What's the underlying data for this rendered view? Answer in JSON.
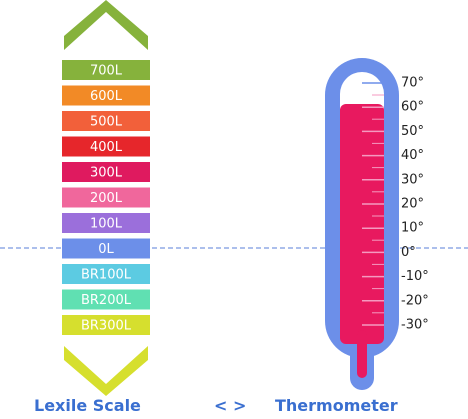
{
  "lexile_scale": {
    "levels": [
      {
        "label": "700L",
        "color": "#86b23c"
      },
      {
        "label": "600L",
        "color": "#f28a26"
      },
      {
        "label": "500L",
        "color": "#f2603a"
      },
      {
        "label": "400L",
        "color": "#e6262b"
      },
      {
        "label": "300L",
        "color": "#df1a5f"
      },
      {
        "label": "200L",
        "color": "#f0679c"
      },
      {
        "label": "100L",
        "color": "#9b6fdb"
      },
      {
        "label": "0L",
        "color": "#6c8fe9"
      },
      {
        "label": "BR100L",
        "color": "#5ccbe2"
      },
      {
        "label": "BR200L",
        "color": "#60e0b2"
      },
      {
        "label": "BR300L",
        "color": "#d6df2e"
      }
    ]
  },
  "thermometer": {
    "labels": [
      "70°",
      "60°",
      "50°",
      "40°",
      "30°",
      "20°",
      "10°",
      "0°",
      "-10°",
      "-20°",
      "-30°"
    ]
  },
  "caption": {
    "left": "Lexile Scale",
    "separator": "< >",
    "right": "Thermometer"
  }
}
